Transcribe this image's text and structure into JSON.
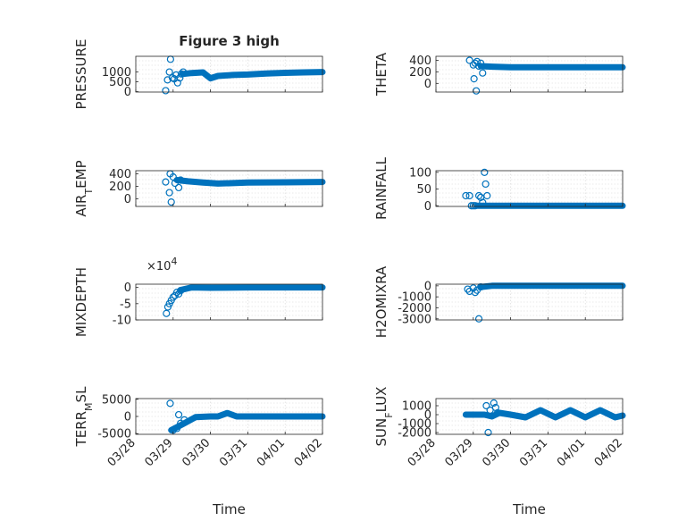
{
  "figure": {
    "title": "Figure 3 high"
  },
  "chart_data": [
    {
      "type": "scatter",
      "name": "pressure",
      "title": "Figure 3 high",
      "ylabel": "PRESSURE",
      "xlabel": "",
      "xlim": [
        0,
        5
      ],
      "ylim": [
        -20,
        1800
      ],
      "yticks": [
        0,
        500,
        1000
      ],
      "ytick_labels": [
        "0",
        "500",
        "1000"
      ],
      "xtick_labels": [],
      "scatter": [
        [
          0.8,
          50
        ],
        [
          0.85,
          600
        ],
        [
          0.9,
          1000
        ],
        [
          0.93,
          1650
        ],
        [
          0.98,
          700
        ],
        [
          1.03,
          650
        ],
        [
          1.08,
          850
        ],
        [
          1.12,
          450
        ],
        [
          1.18,
          700
        ],
        [
          1.22,
          900
        ],
        [
          1.27,
          1000
        ]
      ],
      "line": [
        [
          1.25,
          900
        ],
        [
          1.5,
          950
        ],
        [
          1.8,
          980
        ],
        [
          2.0,
          680
        ],
        [
          2.2,
          800
        ],
        [
          2.6,
          850
        ],
        [
          3.0,
          870
        ],
        [
          3.5,
          920
        ],
        [
          4.0,
          960
        ],
        [
          4.5,
          980
        ],
        [
          5.0,
          1000
        ]
      ]
    },
    {
      "type": "scatter",
      "name": "theta",
      "ylabel": "THETA",
      "xlabel": "",
      "xlim": [
        0,
        5
      ],
      "ylim": [
        -150,
        470
      ],
      "yticks": [
        0,
        200,
        400
      ],
      "ytick_labels": [
        "0",
        "200",
        "400"
      ],
      "xtick_labels": [],
      "scatter": [
        [
          0.9,
          400
        ],
        [
          1.0,
          320
        ],
        [
          1.05,
          350
        ],
        [
          1.1,
          380
        ],
        [
          1.15,
          300
        ],
        [
          1.25,
          180
        ],
        [
          1.02,
          80
        ],
        [
          1.08,
          -130
        ],
        [
          1.2,
          350
        ]
      ],
      "line": [
        [
          1.2,
          300
        ],
        [
          1.5,
          290
        ],
        [
          2.0,
          280
        ],
        [
          3.0,
          280
        ],
        [
          4.0,
          280
        ],
        [
          5.0,
          280
        ]
      ]
    },
    {
      "type": "scatter",
      "name": "air-temp",
      "ylabel": "AIR_TEMP",
      "xlabel": "",
      "xlim": [
        0,
        5
      ],
      "ylim": [
        -120,
        450
      ],
      "yticks": [
        0,
        200,
        400
      ],
      "ytick_labels": [
        "0",
        "200",
        "400"
      ],
      "xtick_labels": [],
      "scatter": [
        [
          0.8,
          270
        ],
        [
          0.9,
          100
        ],
        [
          0.92,
          400
        ],
        [
          0.95,
          -50
        ],
        [
          1.0,
          350
        ],
        [
          1.05,
          250
        ],
        [
          1.15,
          180
        ],
        [
          1.2,
          300
        ]
      ],
      "line": [
        [
          1.1,
          300
        ],
        [
          1.4,
          280
        ],
        [
          1.8,
          260
        ],
        [
          2.2,
          245
        ],
        [
          3.0,
          260
        ],
        [
          4.0,
          265
        ],
        [
          5.0,
          270
        ]
      ]
    },
    {
      "type": "scatter",
      "name": "rainfall",
      "ylabel": "RAINFALL",
      "xlabel": "",
      "xlim": [
        0,
        5
      ],
      "ylim": [
        -2,
        105
      ],
      "yticks": [
        0,
        50,
        100
      ],
      "ytick_labels": [
        "0",
        "50",
        "100"
      ],
      "xtick_labels": [],
      "scatter": [
        [
          0.8,
          30
        ],
        [
          0.9,
          30
        ],
        [
          0.95,
          0
        ],
        [
          1.0,
          0
        ],
        [
          1.05,
          0
        ],
        [
          1.15,
          30
        ],
        [
          1.2,
          25
        ],
        [
          1.25,
          10
        ],
        [
          1.3,
          100
        ],
        [
          1.33,
          65
        ],
        [
          1.37,
          30
        ]
      ],
      "line": [
        [
          1.1,
          0
        ],
        [
          1.5,
          0
        ],
        [
          2.0,
          0
        ],
        [
          3.0,
          0
        ],
        [
          4.0,
          0
        ],
        [
          5.0,
          0
        ]
      ]
    },
    {
      "type": "scatter",
      "name": "mixdepth",
      "ylabel": "MIXDEPTH",
      "xlabel": "",
      "exponent_label": "×10",
      "exponent_power": "4",
      "xlim": [
        0,
        5
      ],
      "ylim": [
        -10,
        1
      ],
      "yticks": [
        -10,
        -5,
        0
      ],
      "ytick_labels": [
        "-10",
        "-5",
        "0"
      ],
      "xtick_labels": [],
      "scatter": [
        [
          0.82,
          -8
        ],
        [
          0.86,
          -6
        ],
        [
          0.9,
          -5
        ],
        [
          0.95,
          -4
        ],
        [
          1.0,
          -3
        ],
        [
          1.05,
          -2.5
        ],
        [
          1.1,
          -1.5
        ],
        [
          1.15,
          -2
        ],
        [
          1.2,
          -1
        ]
      ],
      "line": [
        [
          1.2,
          -0.8
        ],
        [
          1.5,
          0
        ],
        [
          2.0,
          -0.1
        ],
        [
          3.0,
          0
        ],
        [
          4.0,
          0
        ],
        [
          5.0,
          0
        ]
      ]
    },
    {
      "type": "scatter",
      "name": "h2omixra",
      "ylabel": "H2OMIXRA",
      "xlabel": "",
      "xlim": [
        0,
        5
      ],
      "ylim": [
        -3100,
        150
      ],
      "yticks": [
        -3000,
        -2000,
        -1000,
        0
      ],
      "ytick_labels": [
        "-3000",
        "-2000",
        "-1000",
        "0"
      ],
      "xtick_labels": [],
      "scatter": [
        [
          0.85,
          -300
        ],
        [
          0.9,
          -500
        ],
        [
          1.0,
          -200
        ],
        [
          1.05,
          -600
        ],
        [
          1.1,
          -400
        ],
        [
          1.15,
          -3000
        ],
        [
          1.2,
          -100
        ]
      ],
      "line": [
        [
          1.2,
          -100
        ],
        [
          1.5,
          0
        ],
        [
          2.0,
          0
        ],
        [
          3.0,
          0
        ],
        [
          4.0,
          0
        ],
        [
          5.0,
          0
        ]
      ]
    },
    {
      "type": "scatter",
      "name": "terr-msl",
      "ylabel": "TERR_MSL",
      "xlabel": "Time",
      "xlim": [
        0,
        5
      ],
      "ylim": [
        -5200,
        5200
      ],
      "yticks": [
        -5000,
        0,
        5000
      ],
      "ytick_labels": [
        "-5000",
        "0",
        "5000"
      ],
      "xticks": [
        0,
        1,
        2,
        3,
        4,
        5
      ],
      "xtick_labels": [
        "03/28",
        "03/29",
        "03/30",
        "03/31",
        "04/01",
        "04/02"
      ],
      "scatter": [
        [
          0.92,
          3800
        ],
        [
          1.0,
          -4000
        ],
        [
          1.1,
          -3500
        ],
        [
          1.15,
          500
        ],
        [
          1.2,
          -2000
        ],
        [
          1.3,
          -1000
        ]
      ],
      "line": [
        [
          0.95,
          -4000
        ],
        [
          1.3,
          -2000
        ],
        [
          1.6,
          -200
        ],
        [
          2.0,
          0
        ],
        [
          2.2,
          0
        ],
        [
          2.45,
          1000
        ],
        [
          2.7,
          0
        ],
        [
          3.0,
          0
        ],
        [
          3.5,
          0
        ],
        [
          4.0,
          0
        ],
        [
          5.0,
          0
        ]
      ]
    },
    {
      "type": "scatter",
      "name": "sun-flux",
      "ylabel": "SUN_FLUX",
      "xlabel": "Time",
      "xlim": [
        0,
        5
      ],
      "ylim": [
        -2200,
        1800
      ],
      "yticks": [
        -2000,
        -1000,
        0,
        1000
      ],
      "ytick_labels": [
        "-2000",
        "-1000",
        "0",
        "1000"
      ],
      "xticks": [
        0,
        1,
        2,
        3,
        4,
        5
      ],
      "xtick_labels": [
        "03/28",
        "03/29",
        "03/30",
        "03/31",
        "04/01",
        "04/02"
      ],
      "scatter": [
        [
          1.35,
          1000
        ],
        [
          1.45,
          500
        ],
        [
          1.55,
          1300
        ],
        [
          1.6,
          800
        ],
        [
          1.65,
          200
        ],
        [
          1.4,
          -2000
        ]
      ],
      "line": [
        [
          0.8,
          0
        ],
        [
          1.3,
          0
        ],
        [
          1.5,
          -200
        ],
        [
          1.7,
          200
        ],
        [
          2.0,
          0
        ],
        [
          2.4,
          -300
        ],
        [
          2.8,
          500
        ],
        [
          3.2,
          -300
        ],
        [
          3.6,
          500
        ],
        [
          4.0,
          -300
        ],
        [
          4.4,
          500
        ],
        [
          4.8,
          -300
        ],
        [
          5.0,
          -100
        ]
      ]
    }
  ]
}
